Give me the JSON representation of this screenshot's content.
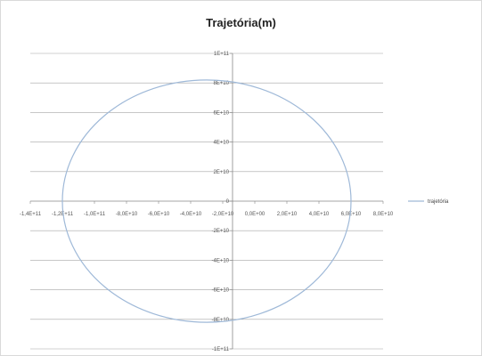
{
  "chart_data": {
    "type": "scatter",
    "title": "Trajetória(m)",
    "xlim": [
      -140000000000,
      80000000000
    ],
    "ylim": [
      -100000000000,
      100000000000
    ],
    "x_ticks": [
      {
        "value": -140000000000,
        "label": "-1,4E+11"
      },
      {
        "value": -120000000000,
        "label": "-1,2E+11"
      },
      {
        "value": -100000000000,
        "label": "-1,0E+11"
      },
      {
        "value": -80000000000,
        "label": "-8,0E+10"
      },
      {
        "value": -60000000000,
        "label": "-6,0E+10"
      },
      {
        "value": -40000000000,
        "label": "-4,0E+10"
      },
      {
        "value": -20000000000,
        "label": "-2,0E+10"
      },
      {
        "value": 0,
        "label": "0,0E+00"
      },
      {
        "value": 20000000000,
        "label": "2,0E+10"
      },
      {
        "value": 40000000000,
        "label": "4,0E+10"
      },
      {
        "value": 60000000000,
        "label": "6,0E+10"
      },
      {
        "value": 80000000000,
        "label": "8,0E+10"
      }
    ],
    "y_ticks": [
      {
        "value": 100000000000,
        "label": "1E+11"
      },
      {
        "value": 80000000000,
        "label": "8E+10"
      },
      {
        "value": 60000000000,
        "label": "6E+10"
      },
      {
        "value": 40000000000,
        "label": "4E+10"
      },
      {
        "value": 20000000000,
        "label": "2E+10"
      },
      {
        "value": 0,
        "label": "0"
      },
      {
        "value": -20000000000,
        "label": "-2E+10"
      },
      {
        "value": -40000000000,
        "label": "-4E+10"
      },
      {
        "value": -60000000000,
        "label": "-6E+10"
      },
      {
        "value": -80000000000,
        "label": "-8E+10"
      },
      {
        "value": -100000000000,
        "label": "-1E+11"
      }
    ],
    "grid": {
      "horizontal": true,
      "vertical": false
    },
    "legend_position": "right",
    "series": [
      {
        "name": "trajetória",
        "color": "#9fb9d8",
        "shape": "ellipse",
        "center": {
          "x": -30000000000,
          "y": 0
        },
        "semi_axis_x": 90000000000,
        "semi_axis_y": 82000000000
      }
    ]
  }
}
